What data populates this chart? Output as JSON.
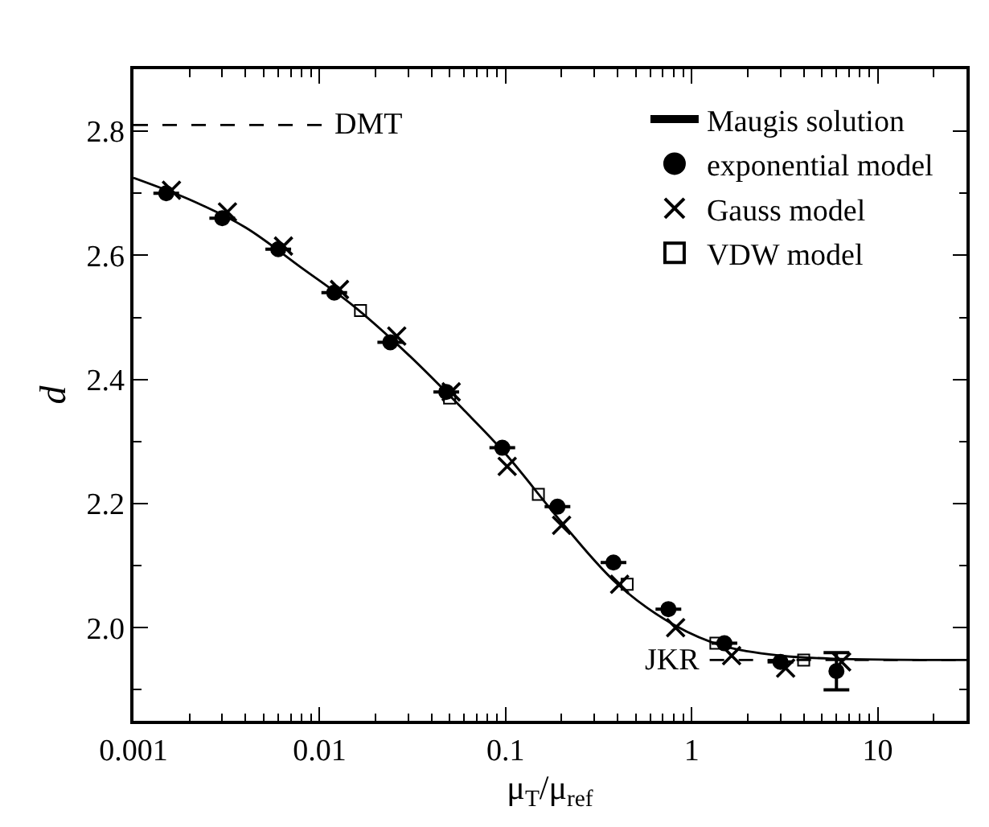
{
  "chart_data": {
    "type": "scatter",
    "xlabel": "μ$_{T}$/μ$_{ref}$",
    "ylabel": "d",
    "log": "x",
    "xlim": [
      0.001,
      30
    ],
    "xticks": [
      0.001,
      0.01,
      0.1,
      1,
      10
    ],
    "ylim": [
      1.85,
      2.9
    ],
    "yticks": [
      {
        "value": 2.0,
        "label": "2.0"
      },
      {
        "value": 2.2,
        "label": "2.2"
      },
      {
        "value": 2.4,
        "label": "2.4"
      },
      {
        "value": 2.6,
        "label": "2.6"
      },
      {
        "value": 2.8,
        "label": "2.8"
      }
    ],
    "legend": "top right",
    "series": [
      {
        "name": "Maugis solution",
        "type": "line",
        "line_style": "solid",
        "color": "#000000",
        "x": [
          0.001,
          0.002,
          0.004,
          0.008,
          0.015,
          0.03,
          0.06,
          0.1,
          0.2,
          0.4,
          0.8,
          1.5,
          3,
          6,
          30
        ],
        "values": [
          2.725,
          2.69,
          2.645,
          2.58,
          2.52,
          2.44,
          2.35,
          2.28,
          2.17,
          2.07,
          2.005,
          1.97,
          1.955,
          1.95,
          1.948
        ]
      },
      {
        "name": "exponential model",
        "marker": "circle",
        "color": "#000000",
        "x": [
          0.0015,
          0.003,
          0.006,
          0.012,
          0.024,
          0.048,
          0.096,
          0.19,
          0.38,
          0.75,
          1.5,
          3.0,
          6.0
        ],
        "values": [
          2.7,
          2.66,
          2.61,
          2.54,
          2.46,
          2.38,
          2.29,
          2.195,
          2.105,
          2.03,
          1.975,
          1.945,
          1.93
        ],
        "errors": [
          null,
          null,
          null,
          null,
          null,
          null,
          null,
          null,
          null,
          null,
          null,
          null,
          0.03
        ]
      },
      {
        "name": "Gauss model",
        "marker": "cross",
        "color": "#000000",
        "x": [
          0.0016,
          0.0032,
          0.0064,
          0.0128,
          0.026,
          0.051,
          0.102,
          0.2,
          0.41,
          0.82,
          1.64,
          3.2,
          6.4
        ],
        "values": [
          2.705,
          2.67,
          2.615,
          2.545,
          2.47,
          2.38,
          2.26,
          2.165,
          2.07,
          2.0,
          1.955,
          1.935,
          1.945
        ]
      },
      {
        "name": "VDW model",
        "marker": "square",
        "color": "#000000",
        "x": [
          0.0166,
          0.05,
          0.15,
          0.45,
          1.35,
          4.0
        ],
        "values": [
          2.511,
          2.37,
          2.215,
          2.07,
          1.975,
          1.948
        ]
      },
      {
        "type": "line",
        "line_style": "dashed",
        "color": "#000000",
        "x": [
          0.001,
          0.0105
        ],
        "values": [
          2.81,
          2.81
        ]
      },
      {
        "type": "line",
        "line_style": "dashed",
        "color": "#000000",
        "x": [
          1.25,
          30
        ],
        "values": [
          1.948,
          1.948
        ]
      }
    ],
    "annotations": [
      {
        "text": "DMT",
        "x": 0.0115,
        "y": 2.81
      },
      {
        "text": "JKR",
        "x": 1.15,
        "y": 1.948
      }
    ]
  }
}
